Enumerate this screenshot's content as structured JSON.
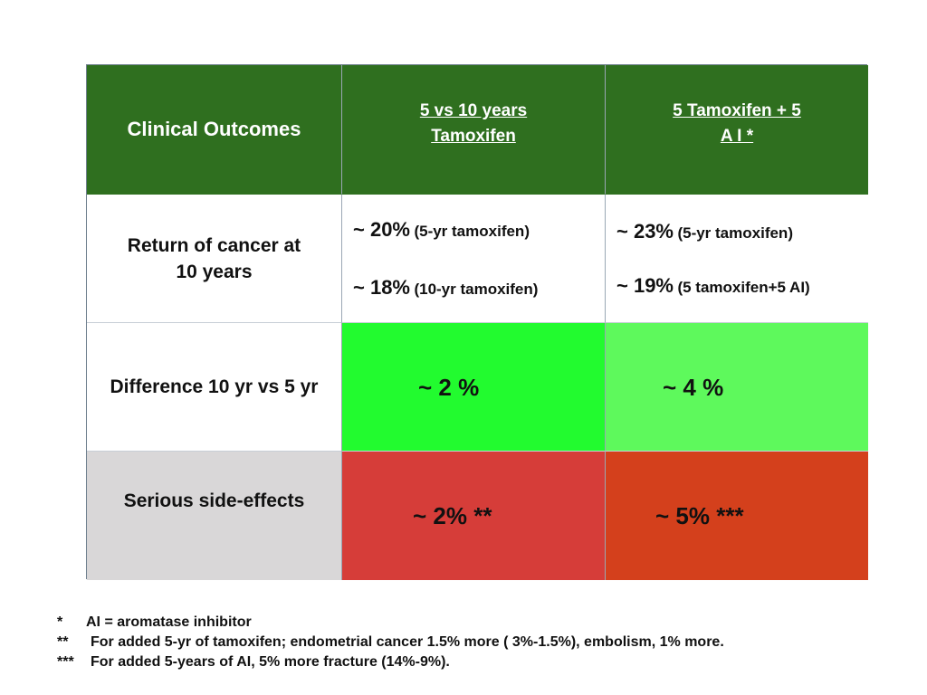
{
  "table": {
    "header": {
      "col0": "Clinical Outcomes",
      "col1_line1": "5 vs 10 years",
      "col1_line2": "Tamoxifen",
      "col2_line1": "5 Tamoxifen + 5",
      "col2_line2": "A I *"
    },
    "rows": [
      {
        "label_line1": "Return of cancer at",
        "label_line2": "10 years",
        "col1": [
          {
            "pct": "~ 20%",
            "note": "(5-yr tamoxifen)"
          },
          {
            "pct": "~ 18%",
            "note": "(10-yr tamoxifen)"
          }
        ],
        "col2": [
          {
            "pct": "~ 23%",
            "note": "(5-yr tamoxifen)"
          },
          {
            "pct": "~ 19%",
            "note": "(5 tamoxifen+5 AI)"
          }
        ]
      },
      {
        "label": "Difference 10 yr vs 5 yr",
        "col1": "~ 2 %",
        "col2": "~ 4 %"
      },
      {
        "label": "Serious side-effects",
        "col1": "~ 2% **",
        "col2": "~ 5% ***"
      }
    ],
    "colors": {
      "header": "#2f6f1f",
      "diff_col1": "#22fb2f",
      "diff_col2": "#5ef95c",
      "side_col1": "#d63d39",
      "side_col2": "#d4401c",
      "side_label": "#d9d7d8"
    }
  },
  "footnotes": [
    {
      "marker": "*",
      "text": "AI = aromatase inhibitor"
    },
    {
      "marker": "**",
      "text": "For added 5-yr of tamoxifen; endometrial cancer 1.5% more ( 3%-1.5%), embolism, 1% more."
    },
    {
      "marker": "***",
      "text": "For added 5-years of AI, 5% more fracture (14%-9%)."
    }
  ]
}
